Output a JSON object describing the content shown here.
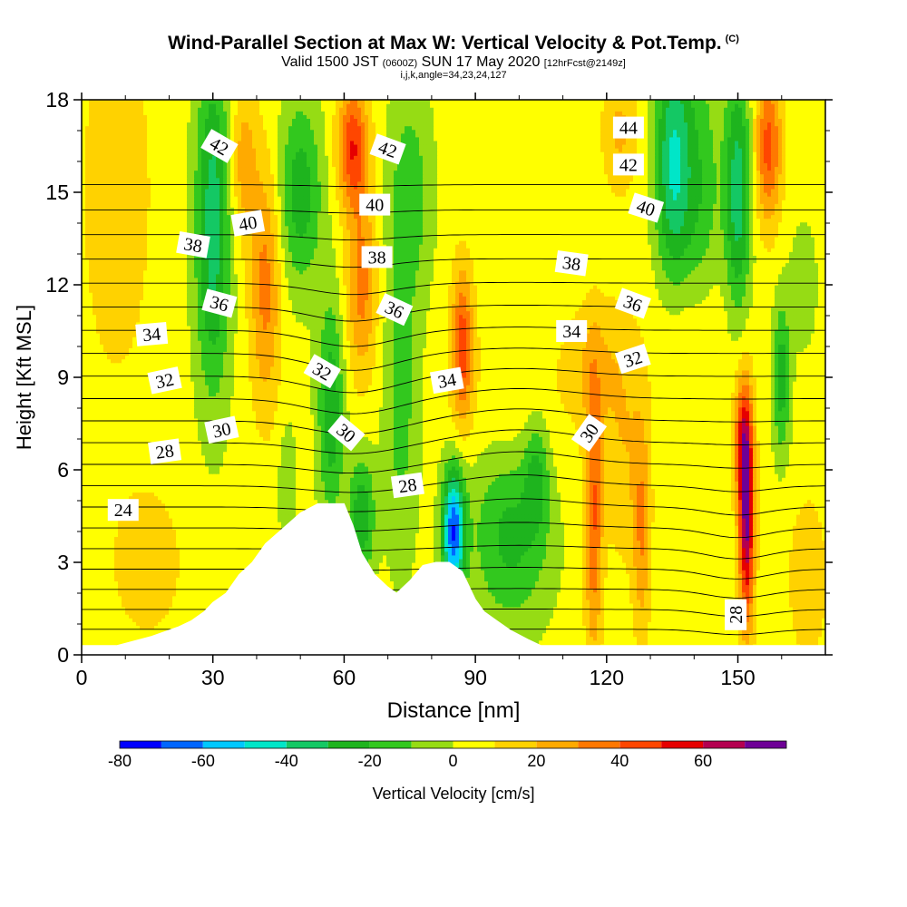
{
  "title": {
    "main": "Wind-Parallel Section at Max W: Vertical Velocity & Pot.Temp.",
    "copyright": "(C)",
    "valid_prefix": "Valid 1500 JST",
    "valid_utc": "(0600Z)",
    "valid_date": "SUN 17 May 2020",
    "forecast": "[12hrFcst@2149z]",
    "indices": "i,j,k,angle=34,23,24,127"
  },
  "chart_data": {
    "type": "heatmap",
    "xlabel": "Distance [nm]",
    "ylabel": "Height [Kft MSL]",
    "xlim": [
      0,
      170
    ],
    "ylim": [
      0,
      18
    ],
    "x_ticks": [
      "0",
      "30",
      "60",
      "90",
      "120",
      "150"
    ],
    "y_ticks": [
      "0",
      "3",
      "6",
      "9",
      "12",
      "15",
      "18"
    ],
    "colorbar": {
      "label": "Vertical Velocity [cm/s]",
      "tick_labels": [
        "-80",
        "-60",
        "-40",
        "-20",
        "0",
        "20",
        "40",
        "60"
      ],
      "levels": [
        -80,
        -70,
        -60,
        -50,
        -40,
        -30,
        -20,
        -10,
        0,
        10,
        20,
        30,
        40,
        50,
        60,
        70
      ],
      "colors": [
        "#0000ff",
        "#0066ff",
        "#00c8ff",
        "#00e6c8",
        "#14c864",
        "#1eb41e",
        "#32c81e",
        "#96dc14",
        "#ffff00",
        "#ffd200",
        "#ffaa00",
        "#ff7800",
        "#ff4600",
        "#e60000",
        "#b40050",
        "#6e0096"
      ]
    },
    "vertical_velocity_features": [
      {
        "x": 8,
        "y": 15,
        "w": 14,
        "rx": 8,
        "ry": 6
      },
      {
        "x": 15,
        "y": 3,
        "w": 10,
        "rx": 10,
        "ry": 3
      },
      {
        "x": 30,
        "y": 14,
        "w": -40,
        "rx": 4,
        "ry": 5.5
      },
      {
        "x": 42,
        "y": 12,
        "w": 30,
        "rx": 3.5,
        "ry": 4
      },
      {
        "x": 37,
        "y": 16,
        "w": 22,
        "rx": 3,
        "ry": 2.5
      },
      {
        "x": 50,
        "y": 15,
        "w": -30,
        "rx": 5,
        "ry": 3
      },
      {
        "x": 57,
        "y": 8,
        "w": -32,
        "rx": 3,
        "ry": 3.5
      },
      {
        "x": 47,
        "y": 5.5,
        "w": -14,
        "rx": 2,
        "ry": 2
      },
      {
        "x": 62,
        "y": 16.5,
        "w": 45,
        "rx": 3.5,
        "ry": 2
      },
      {
        "x": 64,
        "y": 12,
        "w": 30,
        "rx": 3.5,
        "ry": 3
      },
      {
        "x": 64,
        "y": 4.5,
        "w": -32,
        "rx": 3,
        "ry": 2
      },
      {
        "x": 75,
        "y": 15,
        "w": -20,
        "rx": 5,
        "ry": 3.5
      },
      {
        "x": 73,
        "y": 8,
        "w": -18,
        "rx": 4,
        "ry": 5
      },
      {
        "x": 87,
        "y": 10,
        "w": 42,
        "rx": 2.5,
        "ry": 2.5
      },
      {
        "x": 85,
        "y": 4,
        "w": -72,
        "rx": 2.5,
        "ry": 2
      },
      {
        "x": 98,
        "y": 4,
        "w": -28,
        "rx": 9,
        "ry": 3
      },
      {
        "x": 104,
        "y": 6,
        "w": -22,
        "rx": 3,
        "ry": 2
      },
      {
        "x": 101,
        "y": 8,
        "w": 8,
        "rx": 12,
        "ry": 3
      },
      {
        "x": 117,
        "y": 4.5,
        "w": 36,
        "rx": 2,
        "ry": 4.5
      },
      {
        "x": 124,
        "y": 7,
        "w": 15,
        "rx": 5,
        "ry": 4
      },
      {
        "x": 128,
        "y": 4,
        "w": 24,
        "rx": 2,
        "ry": 3.5
      },
      {
        "x": 117,
        "y": 9.5,
        "w": 14,
        "rx": 6,
        "ry": 2
      },
      {
        "x": 135,
        "y": 16,
        "w": -42,
        "rx": 4,
        "ry": 4
      },
      {
        "x": 123,
        "y": 17,
        "w": 18,
        "rx": 4,
        "ry": 2
      },
      {
        "x": 141,
        "y": 15,
        "w": -22,
        "rx": 5,
        "ry": 5
      },
      {
        "x": 150,
        "y": 15,
        "w": -40,
        "rx": 3,
        "ry": 4
      },
      {
        "x": 157,
        "y": 16.5,
        "w": 40,
        "rx": 3,
        "ry": 2.5
      },
      {
        "x": 160,
        "y": 9,
        "w": -30,
        "rx": 2,
        "ry": 2.5
      },
      {
        "x": 165,
        "y": 12,
        "w": -12,
        "rx": 3,
        "ry": 2
      },
      {
        "x": 152,
        "y": 4.5,
        "w": 68,
        "rx": 1.8,
        "ry": 3.5
      },
      {
        "x": 151,
        "y": 7,
        "w": 35,
        "rx": 2,
        "ry": 2
      },
      {
        "x": 166,
        "y": 2.5,
        "w": 12,
        "rx": 5,
        "ry": 3
      },
      {
        "x": 140,
        "y": 10.5,
        "w": 12,
        "rx": 8,
        "ry": 2.5
      }
    ],
    "terrain_profile": {
      "x": [
        0,
        8,
        16,
        22,
        25,
        28,
        30,
        33,
        36,
        39,
        42,
        46,
        50,
        54,
        58,
        60,
        62,
        64,
        67,
        70,
        72,
        75,
        78,
        81,
        84,
        87,
        90,
        92,
        95,
        98,
        102,
        105,
        110,
        170
      ],
      "y": [
        0.3,
        0.3,
        0.6,
        0.9,
        1.1,
        1.4,
        1.7,
        2.0,
        2.6,
        3.0,
        3.6,
        4.1,
        4.6,
        4.9,
        4.9,
        4.9,
        4.2,
        3.3,
        2.6,
        2.2,
        2.0,
        2.4,
        2.9,
        3.0,
        3.0,
        2.7,
        1.8,
        1.4,
        1.1,
        0.8,
        0.5,
        0.3,
        0.3,
        0.3
      ]
    },
    "potential_temperature_contours": {
      "levels": [
        24,
        25,
        26,
        27,
        28,
        29,
        30,
        31,
        32,
        33,
        34,
        35,
        36,
        37,
        38,
        39,
        40,
        41,
        42,
        43,
        44,
        45
      ],
      "labels": [
        {
          "text": "24",
          "x": 9.5,
          "y": 4.7,
          "angle": 0
        },
        {
          "text": "28",
          "x": 19,
          "y": 6.6,
          "angle": -8
        },
        {
          "text": "30",
          "x": 32,
          "y": 7.3,
          "angle": -12
        },
        {
          "text": "32",
          "x": 19,
          "y": 8.9,
          "angle": -12
        },
        {
          "text": "34",
          "x": 16,
          "y": 10.4,
          "angle": -5
        },
        {
          "text": "36",
          "x": 31.5,
          "y": 11.4,
          "angle": 15
        },
        {
          "text": "38",
          "x": 25.5,
          "y": 13.3,
          "angle": 10
        },
        {
          "text": "40",
          "x": 38,
          "y": 14,
          "angle": -10
        },
        {
          "text": "42",
          "x": 31.5,
          "y": 16.5,
          "angle": 30
        },
        {
          "text": "32",
          "x": 55,
          "y": 9.2,
          "angle": 30
        },
        {
          "text": "30",
          "x": 60.5,
          "y": 7.2,
          "angle": 40
        },
        {
          "text": "28",
          "x": 74.5,
          "y": 5.5,
          "angle": -8
        },
        {
          "text": "36",
          "x": 71.5,
          "y": 11.2,
          "angle": 25
        },
        {
          "text": "38",
          "x": 67.5,
          "y": 12.9,
          "angle": 0
        },
        {
          "text": "40",
          "x": 67,
          "y": 14.6,
          "angle": 0
        },
        {
          "text": "42",
          "x": 70,
          "y": 16.4,
          "angle": 20
        },
        {
          "text": "34",
          "x": 83.5,
          "y": 8.9,
          "angle": -10
        },
        {
          "text": "34",
          "x": 112,
          "y": 10.5,
          "angle": 0
        },
        {
          "text": "30",
          "x": 116,
          "y": 7.2,
          "angle": -55
        },
        {
          "text": "38",
          "x": 112,
          "y": 12.7,
          "angle": 8
        },
        {
          "text": "32",
          "x": 126,
          "y": 9.6,
          "angle": -18
        },
        {
          "text": "36",
          "x": 126,
          "y": 11.4,
          "angle": 20
        },
        {
          "text": "40",
          "x": 129,
          "y": 14.5,
          "angle": 18
        },
        {
          "text": "42",
          "x": 125,
          "y": 15.9,
          "angle": 0
        },
        {
          "text": "44",
          "x": 125,
          "y": 17.1,
          "angle": 0
        },
        {
          "text": "28",
          "x": 149.5,
          "y": 1.3,
          "angle": -90
        }
      ]
    }
  }
}
